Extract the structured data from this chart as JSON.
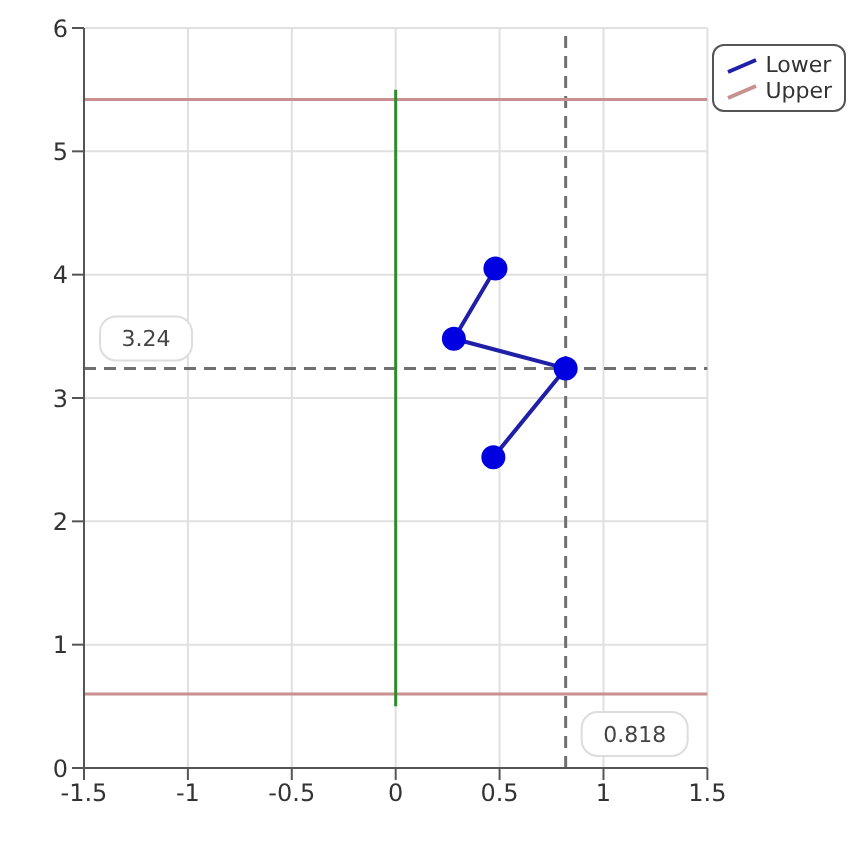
{
  "chart_data": {
    "type": "line",
    "xlim": [
      -1.5,
      1.5
    ],
    "ylim": [
      0,
      6
    ],
    "xticks": [
      -1.5,
      -1,
      -0.5,
      0,
      0.5,
      1,
      1.5
    ],
    "yticks": [
      0,
      1,
      2,
      3,
      4,
      5,
      6
    ],
    "grid": true,
    "legend": "top right",
    "series": [
      {
        "name": "Lower",
        "color": "#1f1fa8",
        "marker": "circle",
        "x": [
          0.48,
          0.28,
          0.818,
          0.47
        ],
        "values": [
          4.05,
          3.48,
          3.24,
          2.52
        ]
      },
      {
        "name": "Upper",
        "color": "#c89090",
        "marker": "none",
        "x": [
          -1.5,
          1.5
        ],
        "values": [
          5.42,
          5.42
        ]
      },
      {
        "color": "#2e8b2e",
        "marker": "none",
        "x": [
          0,
          0
        ],
        "values": [
          0.5,
          5.5
        ]
      }
    ],
    "ref_lines": [
      {
        "axis": "y",
        "value": 0.6,
        "color": "#c89090",
        "line_style": "solid"
      },
      {
        "axis": "x",
        "value": 0.818,
        "label": "0.818",
        "color": "#707070",
        "line_style": "dashed"
      },
      {
        "axis": "y",
        "value": 3.24,
        "label": "3.24",
        "color": "#707070",
        "line_style": "dashed"
      }
    ]
  }
}
